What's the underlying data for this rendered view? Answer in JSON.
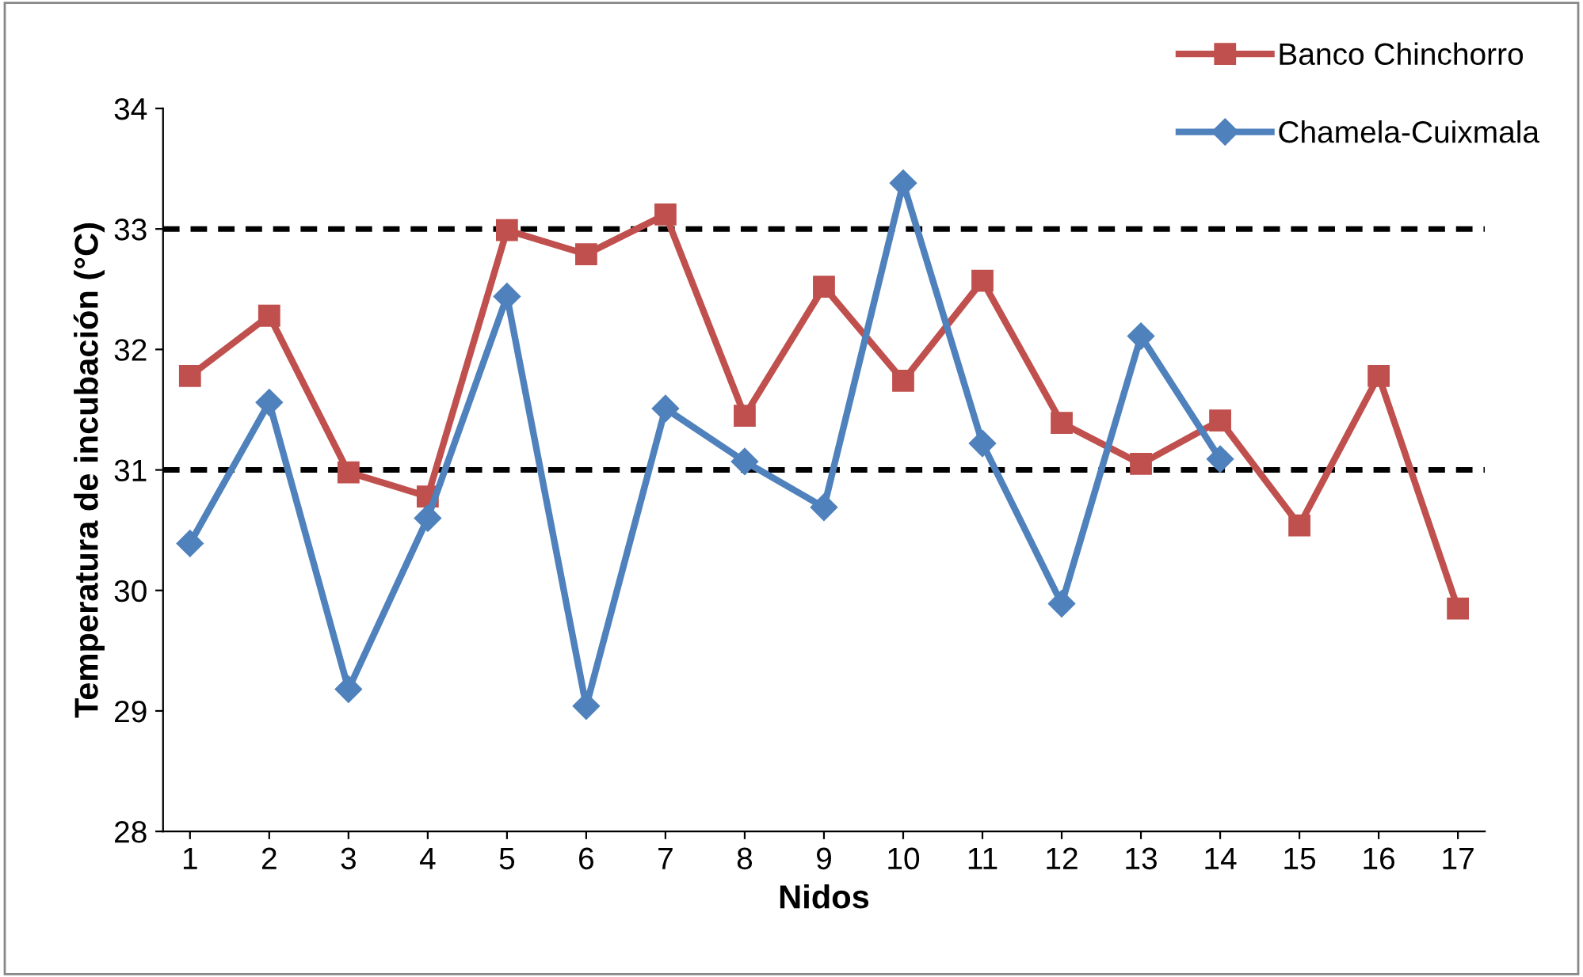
{
  "chart_data": {
    "type": "line",
    "xlabel": "Nidos",
    "ylabel": "Temperatura de incubación (°C)",
    "categories": [
      "1",
      "2",
      "3",
      "4",
      "5",
      "6",
      "7",
      "8",
      "9",
      "10",
      "11",
      "12",
      "13",
      "14",
      "15",
      "16",
      "17"
    ],
    "series": [
      {
        "name": "Banco Chinchorro",
        "color": "#c0504d",
        "marker": "square",
        "values": [
          31.78,
          32.28,
          30.98,
          30.78,
          32.99,
          32.79,
          33.12,
          31.45,
          32.52,
          31.74,
          32.57,
          31.39,
          31.05,
          31.41,
          30.54,
          31.78,
          29.85
        ]
      },
      {
        "name": "Chamela-Cuixmala",
        "color": "#4f81bd",
        "marker": "diamond",
        "values": [
          30.39,
          31.56,
          29.18,
          30.6,
          32.44,
          29.04,
          31.51,
          31.07,
          30.69,
          33.38,
          31.22,
          29.89,
          32.11,
          31.09,
          null,
          null,
          null
        ]
      }
    ],
    "ylim": [
      28,
      34
    ],
    "yticks": [
      28,
      29,
      30,
      31,
      32,
      33,
      34
    ],
    "grid": false,
    "legend": "top right",
    "line_style": "solid",
    "ref_lines": [
      {
        "axis": "y",
        "value": 31,
        "color": "#000000",
        "line_style": "dashed"
      },
      {
        "axis": "y",
        "value": 33,
        "color": "#000000",
        "line_style": "dashed"
      }
    ]
  }
}
